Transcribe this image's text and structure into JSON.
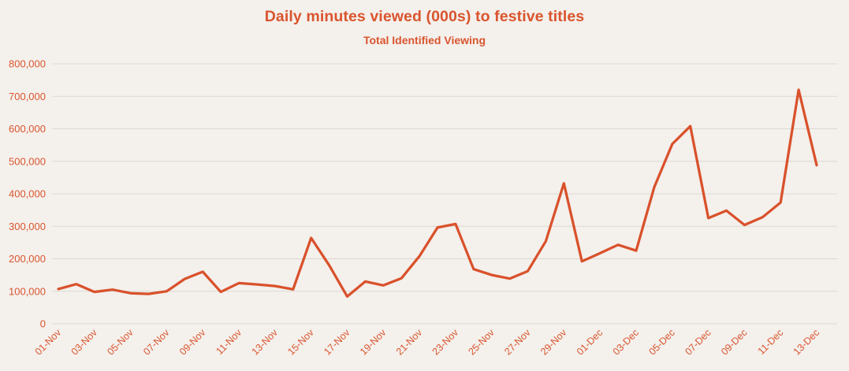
{
  "page": {
    "background_color": "#f4f0ec",
    "accent_color": "#d9552e",
    "grid_color": "#dcd7d2"
  },
  "header": {
    "title": "Daily minutes viewed (000s) to festive titles",
    "subtitle": "Total Identified Viewing"
  },
  "chart_data": {
    "type": "line",
    "title": "Daily minutes viewed (000s) to festive titles",
    "subtitle": "Total Identified Viewing",
    "series": [
      {
        "name": "Total Identified Viewing",
        "color": "#d9512b",
        "values": [
          107000,
          122000,
          98000,
          105000,
          94000,
          92000,
          100000,
          138000,
          160000,
          98000,
          125000,
          121000,
          116000,
          106000,
          264000,
          180000,
          84000,
          130000,
          118000,
          140000,
          208000,
          296000,
          307000,
          168000,
          150000,
          139000,
          162000,
          254000,
          432000,
          192000,
          217000,
          243000,
          225000,
          420000,
          553000,
          608000,
          325000,
          348000,
          304000,
          328000,
          373000,
          720000,
          488000
        ]
      }
    ],
    "categories": [
      "01-Nov",
      "02-Nov",
      "03-Nov",
      "04-Nov",
      "05-Nov",
      "06-Nov",
      "07-Nov",
      "08-Nov",
      "09-Nov",
      "10-Nov",
      "11-Nov",
      "12-Nov",
      "13-Nov",
      "14-Nov",
      "15-Nov",
      "16-Nov",
      "17-Nov",
      "18-Nov",
      "19-Nov",
      "20-Nov",
      "21-Nov",
      "22-Nov",
      "23-Nov",
      "24-Nov",
      "25-Nov",
      "26-Nov",
      "27-Nov",
      "28-Nov",
      "29-Nov",
      "30-Nov",
      "01-Dec",
      "02-Dec",
      "03-Dec",
      "04-Dec",
      "05-Dec",
      "06-Dec",
      "07-Dec",
      "08-Dec",
      "09-Dec",
      "10-Dec",
      "11-Dec",
      "12-Dec",
      "13-Dec"
    ],
    "x_label_every": 2,
    "x_label_rotation_deg": -45,
    "xlabel": "",
    "ylabel": "",
    "ylim": [
      0,
      800000
    ],
    "y_tick_step": 100000,
    "y_tick_labels": [
      "0",
      "100,000",
      "200,000",
      "300,000",
      "400,000",
      "500,000",
      "600,000",
      "700,000",
      "800,000"
    ],
    "grid": "horizontal",
    "legend": "none",
    "axis_text_color": "#d9552e",
    "grid_color": "#dcd7d2",
    "background_color": "#f4f0ec"
  }
}
